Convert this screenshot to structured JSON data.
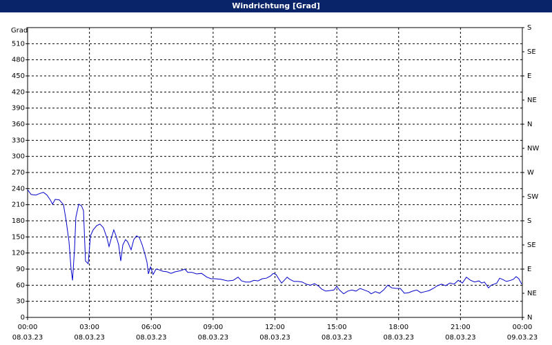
{
  "chart_data": {
    "type": "line",
    "title": "Windrichtung [Grad]",
    "y_label": "Grad",
    "xlim": [
      0,
      24
    ],
    "xticks": [
      {
        "value": 0,
        "label": "00:00"
      },
      {
        "value": 3,
        "label": "03:00"
      },
      {
        "value": 6,
        "label": "06:00"
      },
      {
        "value": 9,
        "label": "09:00"
      },
      {
        "value": 12,
        "label": "12:00"
      },
      {
        "value": 15,
        "label": "15:00"
      },
      {
        "value": 18,
        "label": "18:00"
      },
      {
        "value": 21,
        "label": "21:00"
      },
      {
        "value": 24,
        "label": "00:00"
      }
    ],
    "xtick_dates": [
      "08.03.23",
      "08.03.23",
      "08.03.23",
      "08.03.23",
      "08.03.23",
      "08.03.23",
      "08.03.23",
      "08.03.23",
      "09.03.23"
    ],
    "ylim": [
      0,
      540
    ],
    "yticks": [
      0,
      30,
      60,
      90,
      120,
      150,
      180,
      210,
      240,
      270,
      300,
      330,
      360,
      390,
      420,
      450,
      480,
      510
    ],
    "y2lim": [
      0,
      540
    ],
    "y2ticks": [
      {
        "value": 0,
        "label": "N"
      },
      {
        "value": 45,
        "label": "NE"
      },
      {
        "value": 90,
        "label": "E"
      },
      {
        "value": 135,
        "label": "SE"
      },
      {
        "value": 180,
        "label": "S"
      },
      {
        "value": 225,
        "label": "SW"
      },
      {
        "value": 270,
        "label": "W"
      },
      {
        "value": 315,
        "label": "NW"
      },
      {
        "value": 360,
        "label": "N"
      },
      {
        "value": 405,
        "label": "NE"
      },
      {
        "value": 450,
        "label": "E"
      },
      {
        "value": 495,
        "label": "SE"
      },
      {
        "value": 540,
        "label": "S"
      }
    ],
    "grid": true,
    "series": [
      {
        "color": "#0000cc",
        "x": [
          0,
          0.17,
          0.4,
          0.6,
          0.77,
          0.94,
          1.1,
          1.21,
          1.34,
          1.54,
          1.74,
          1.87,
          2.01,
          2.11,
          2.18,
          2.28,
          2.34,
          2.48,
          2.61,
          2.71,
          2.81,
          2.94,
          3.05,
          3.18,
          3.35,
          3.51,
          3.68,
          3.85,
          3.95,
          4.08,
          4.18,
          4.28,
          4.42,
          4.52,
          4.62,
          4.75,
          4.85,
          5.02,
          5.15,
          5.29,
          5.42,
          5.56,
          5.69,
          5.79,
          5.86,
          5.96,
          6.09,
          6.23,
          6.36,
          6.56,
          6.76,
          6.96,
          7.16,
          7.43,
          7.63,
          7.77,
          7.97,
          8.2,
          8.44,
          8.7,
          8.9,
          9.1,
          9.37,
          9.71,
          9.97,
          10.21,
          10.38,
          10.58,
          10.78,
          10.98,
          11.18,
          11.38,
          11.58,
          11.78,
          11.92,
          12.05,
          12.18,
          12.32,
          12.45,
          12.59,
          12.72,
          12.92,
          13.12,
          13.32,
          13.52,
          13.72,
          13.92,
          14.13,
          14.26,
          14.46,
          14.66,
          14.86,
          15.0,
          15.13,
          15.33,
          15.53,
          15.73,
          15.93,
          16.13,
          16.33,
          16.54,
          16.67,
          16.87,
          17.07,
          17.27,
          17.47,
          17.67,
          17.87,
          18.08,
          18.28,
          18.48,
          18.68,
          18.88,
          19.08,
          19.28,
          19.48,
          19.68,
          19.88,
          20.08,
          20.28,
          20.49,
          20.69,
          20.89,
          21.09,
          21.29,
          21.49,
          21.69,
          21.89,
          22.03,
          22.16,
          22.36,
          22.49,
          22.63,
          22.76,
          22.9,
          23.03,
          23.23,
          23.43,
          23.56,
          23.7,
          23.83,
          23.97
        ],
        "values": [
          238,
          229,
          228,
          231,
          233,
          228,
          219,
          211,
          220,
          219,
          210,
          180,
          141,
          90,
          69,
          129,
          186,
          211,
          208,
          199,
          105,
          100,
          152,
          163,
          171,
          174,
          167,
          148,
          132,
          150,
          163,
          153,
          135,
          105,
          135,
          145,
          141,
          126,
          145,
          152,
          149,
          135,
          118,
          103,
          81,
          94,
          80,
          90,
          89,
          86,
          85,
          82,
          85,
          87,
          90,
          84,
          84,
          81,
          82,
          75,
          72,
          72,
          71,
          68,
          69,
          75,
          68,
          66,
          66,
          69,
          68,
          72,
          73,
          77,
          82,
          80,
          72,
          64,
          69,
          75,
          71,
          67,
          67,
          66,
          62,
          60,
          63,
          58,
          53,
          49,
          50,
          51,
          58,
          51,
          44,
          49,
          51,
          49,
          54,
          51,
          48,
          44,
          48,
          45,
          51,
          60,
          55,
          54,
          54,
          45,
          46,
          49,
          51,
          46,
          48,
          50,
          54,
          59,
          62,
          59,
          64,
          62,
          69,
          64,
          75,
          69,
          66,
          68,
          64,
          66,
          55,
          60,
          62,
          64,
          73,
          71,
          67,
          69,
          71,
          76,
          72,
          62
        ]
      }
    ]
  }
}
